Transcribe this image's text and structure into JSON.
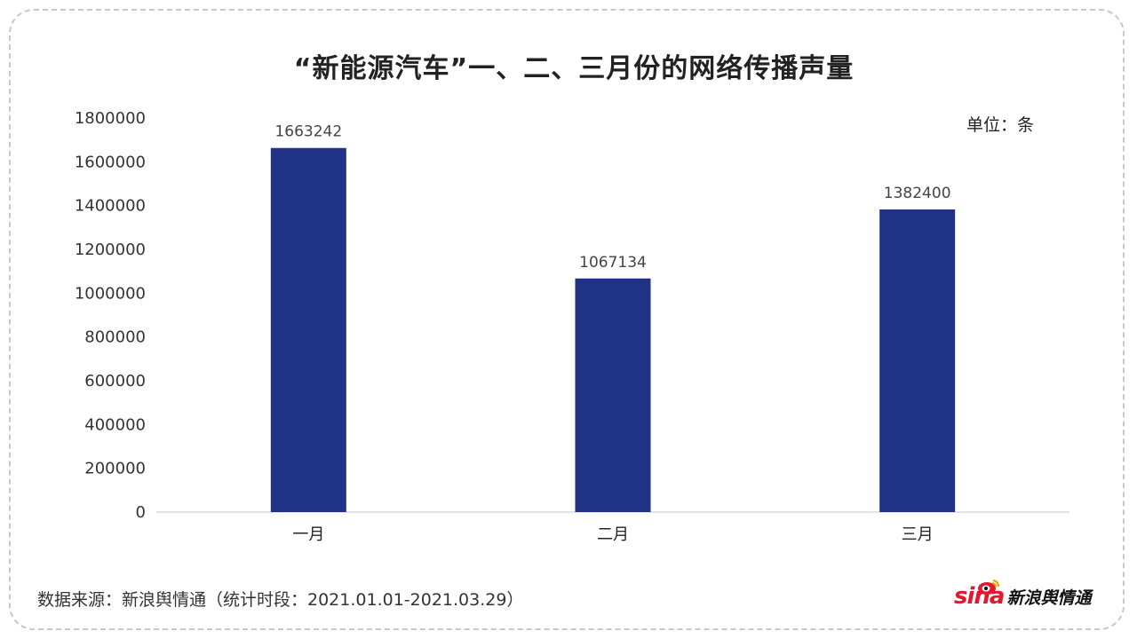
{
  "chart_data": {
    "type": "bar",
    "title": "“新能源汽车”一、二、三月份的网络传播声量",
    "unit_label": "单位：条",
    "categories": [
      "一月",
      "二月",
      "三月"
    ],
    "values": [
      1663242,
      1067134,
      1382400
    ],
    "value_labels": [
      "1663242",
      "1067134",
      "1382400"
    ],
    "ylim": [
      0,
      1800000
    ],
    "yticks": [
      "0",
      "200000",
      "400000",
      "600000",
      "800000",
      "1000000",
      "1200000",
      "1400000",
      "1600000",
      "1800000"
    ],
    "bar_color": "#1f3285",
    "grid": false,
    "legend": "none"
  },
  "footer": {
    "source": "数据来源：新浪舆情通（统计时段：2021.01.01-2021.03.29）",
    "logo_sina": "sina",
    "logo_text": "新浪舆情通"
  }
}
